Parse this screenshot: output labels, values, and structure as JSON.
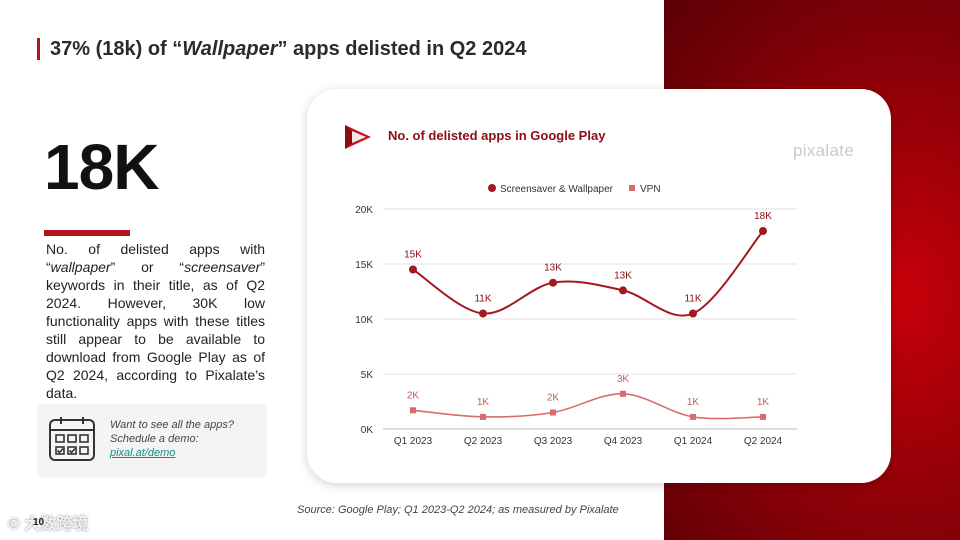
{
  "slide": {
    "title_prefix": "37% (18k) of “",
    "title_em": "Wallpaper",
    "title_suffix": "” apps delisted in Q2 2024",
    "big_number": "18K",
    "description": {
      "part1": "No. of delisted apps with “",
      "em1": "wallpaper",
      "part2": "” or “",
      "em2": "screensaver",
      "part3": "” keywords in their title, as of Q2 2024. However, 30K low functionality apps with these titles still appear to be available to download from Google Play as of Q2 2024, according to Pixalate’s data."
    },
    "demo": {
      "text": "Want to see all the apps? Schedule a demo: ",
      "link": "pixal.at/demo"
    },
    "source": "Source: Google Play; Q1 2023-Q2 2024; as measured by Pixalate",
    "page_number": "10",
    "watermark": "© 大数跨境",
    "brand": "pixalate",
    "colors": {
      "accent": "#b3121b",
      "series1": "#a31a1e",
      "series2": "#d96b6b",
      "link": "#138a8a"
    }
  },
  "chart_data": {
    "type": "line",
    "title": "No. of delisted apps in Google Play",
    "categories": [
      "Q1 2023",
      "Q2 2023",
      "Q3 2023",
      "Q4 2023",
      "Q1 2024",
      "Q2 2024"
    ],
    "series": [
      {
        "name": "Screensaver & Wallpaper",
        "values": [
          14.5,
          10.5,
          13.3,
          12.6,
          10.5,
          18.0
        ],
        "labels": [
          "15K",
          "11K",
          "13K",
          "13K",
          "11K",
          "18K"
        ],
        "color": "#a31a1e"
      },
      {
        "name": "VPN",
        "values": [
          1.7,
          1.1,
          1.5,
          3.2,
          1.1,
          1.1
        ],
        "labels": [
          "2K",
          "1K",
          "2K",
          "3K",
          "1K",
          "1K"
        ],
        "color": "#d96b6b"
      }
    ],
    "y_ticks": [
      0,
      5,
      10,
      15,
      20
    ],
    "y_tick_labels": [
      "0K",
      "5K",
      "10K",
      "15K",
      "20K"
    ],
    "ylim": [
      0,
      20
    ],
    "grid": true,
    "legend_position": "top"
  }
}
